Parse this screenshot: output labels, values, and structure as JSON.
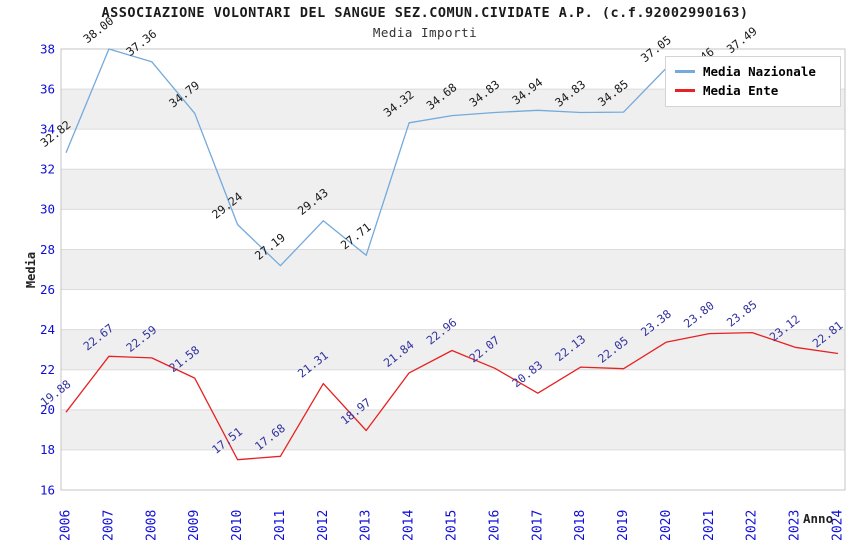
{
  "header": {
    "title": "ASSOCIAZIONE VOLONTARI DEL SANGUE SEZ.COMUN.CIVIDATE A.P. (c.f.92002990163)",
    "subtitle": "Media Importi"
  },
  "chart_data": {
    "type": "line",
    "title": "ASSOCIAZIONE VOLONTARI DEL SANGUE SEZ.COMUN.CIVIDATE A.P. (c.f.92002990163)",
    "subtitle": "Media Importi",
    "xlabel": "Anno",
    "ylabel": "Media",
    "ylim": [
      16,
      38
    ],
    "ytick_step": 2,
    "grid": true,
    "legend_position": "top-right",
    "colors": {
      "axis_text": "#0f0fd8",
      "band_fill": "#efefef",
      "grid_line": "#dcdcdc",
      "plot_border": "#c4c4c4",
      "title_text": "#1a1a1a"
    },
    "categories": [
      "2006",
      "2007",
      "2008",
      "2009",
      "2010",
      "2011",
      "2012",
      "2013",
      "2014",
      "2015",
      "2016",
      "2017",
      "2018",
      "2019",
      "2020",
      "2021",
      "2022",
      "2023",
      "2024"
    ],
    "series": [
      {
        "name": "Media Nazionale",
        "color": "#74aadc",
        "label_color": "#1a1a1a",
        "values": [
          32.82,
          38.0,
          37.36,
          34.79,
          29.24,
          27.19,
          29.43,
          27.71,
          34.32,
          34.68,
          34.83,
          34.94,
          34.83,
          34.85,
          37.05,
          36.46,
          37.49,
          37.2,
          37.3
        ],
        "labels": [
          "32.82",
          "38.00",
          "37.36",
          "34.79",
          "29.24",
          "27.19",
          "29.43",
          "27.71",
          "34.32",
          "34.68",
          "34.83",
          "34.94",
          "34.83",
          "34.85",
          "37.05",
          "36.46",
          "37.49",
          "",
          ""
        ]
      },
      {
        "name": "Media Ente",
        "color": "#e62222",
        "label_color": "#3333a0",
        "values": [
          19.88,
          22.67,
          22.59,
          21.58,
          17.51,
          17.68,
          21.31,
          18.97,
          21.84,
          22.96,
          22.07,
          20.83,
          22.13,
          22.05,
          23.38,
          23.8,
          23.85,
          23.12,
          22.81
        ],
        "labels": [
          "19.88",
          "22.67",
          "22.59",
          "21.58",
          "17.51",
          "17.68",
          "21.31",
          "18.97",
          "21.84",
          "22.96",
          "22.07",
          "20.83",
          "22.13",
          "22.05",
          "23.38",
          "23.80",
          "23.85",
          "23.12",
          "22.81"
        ]
      }
    ]
  }
}
